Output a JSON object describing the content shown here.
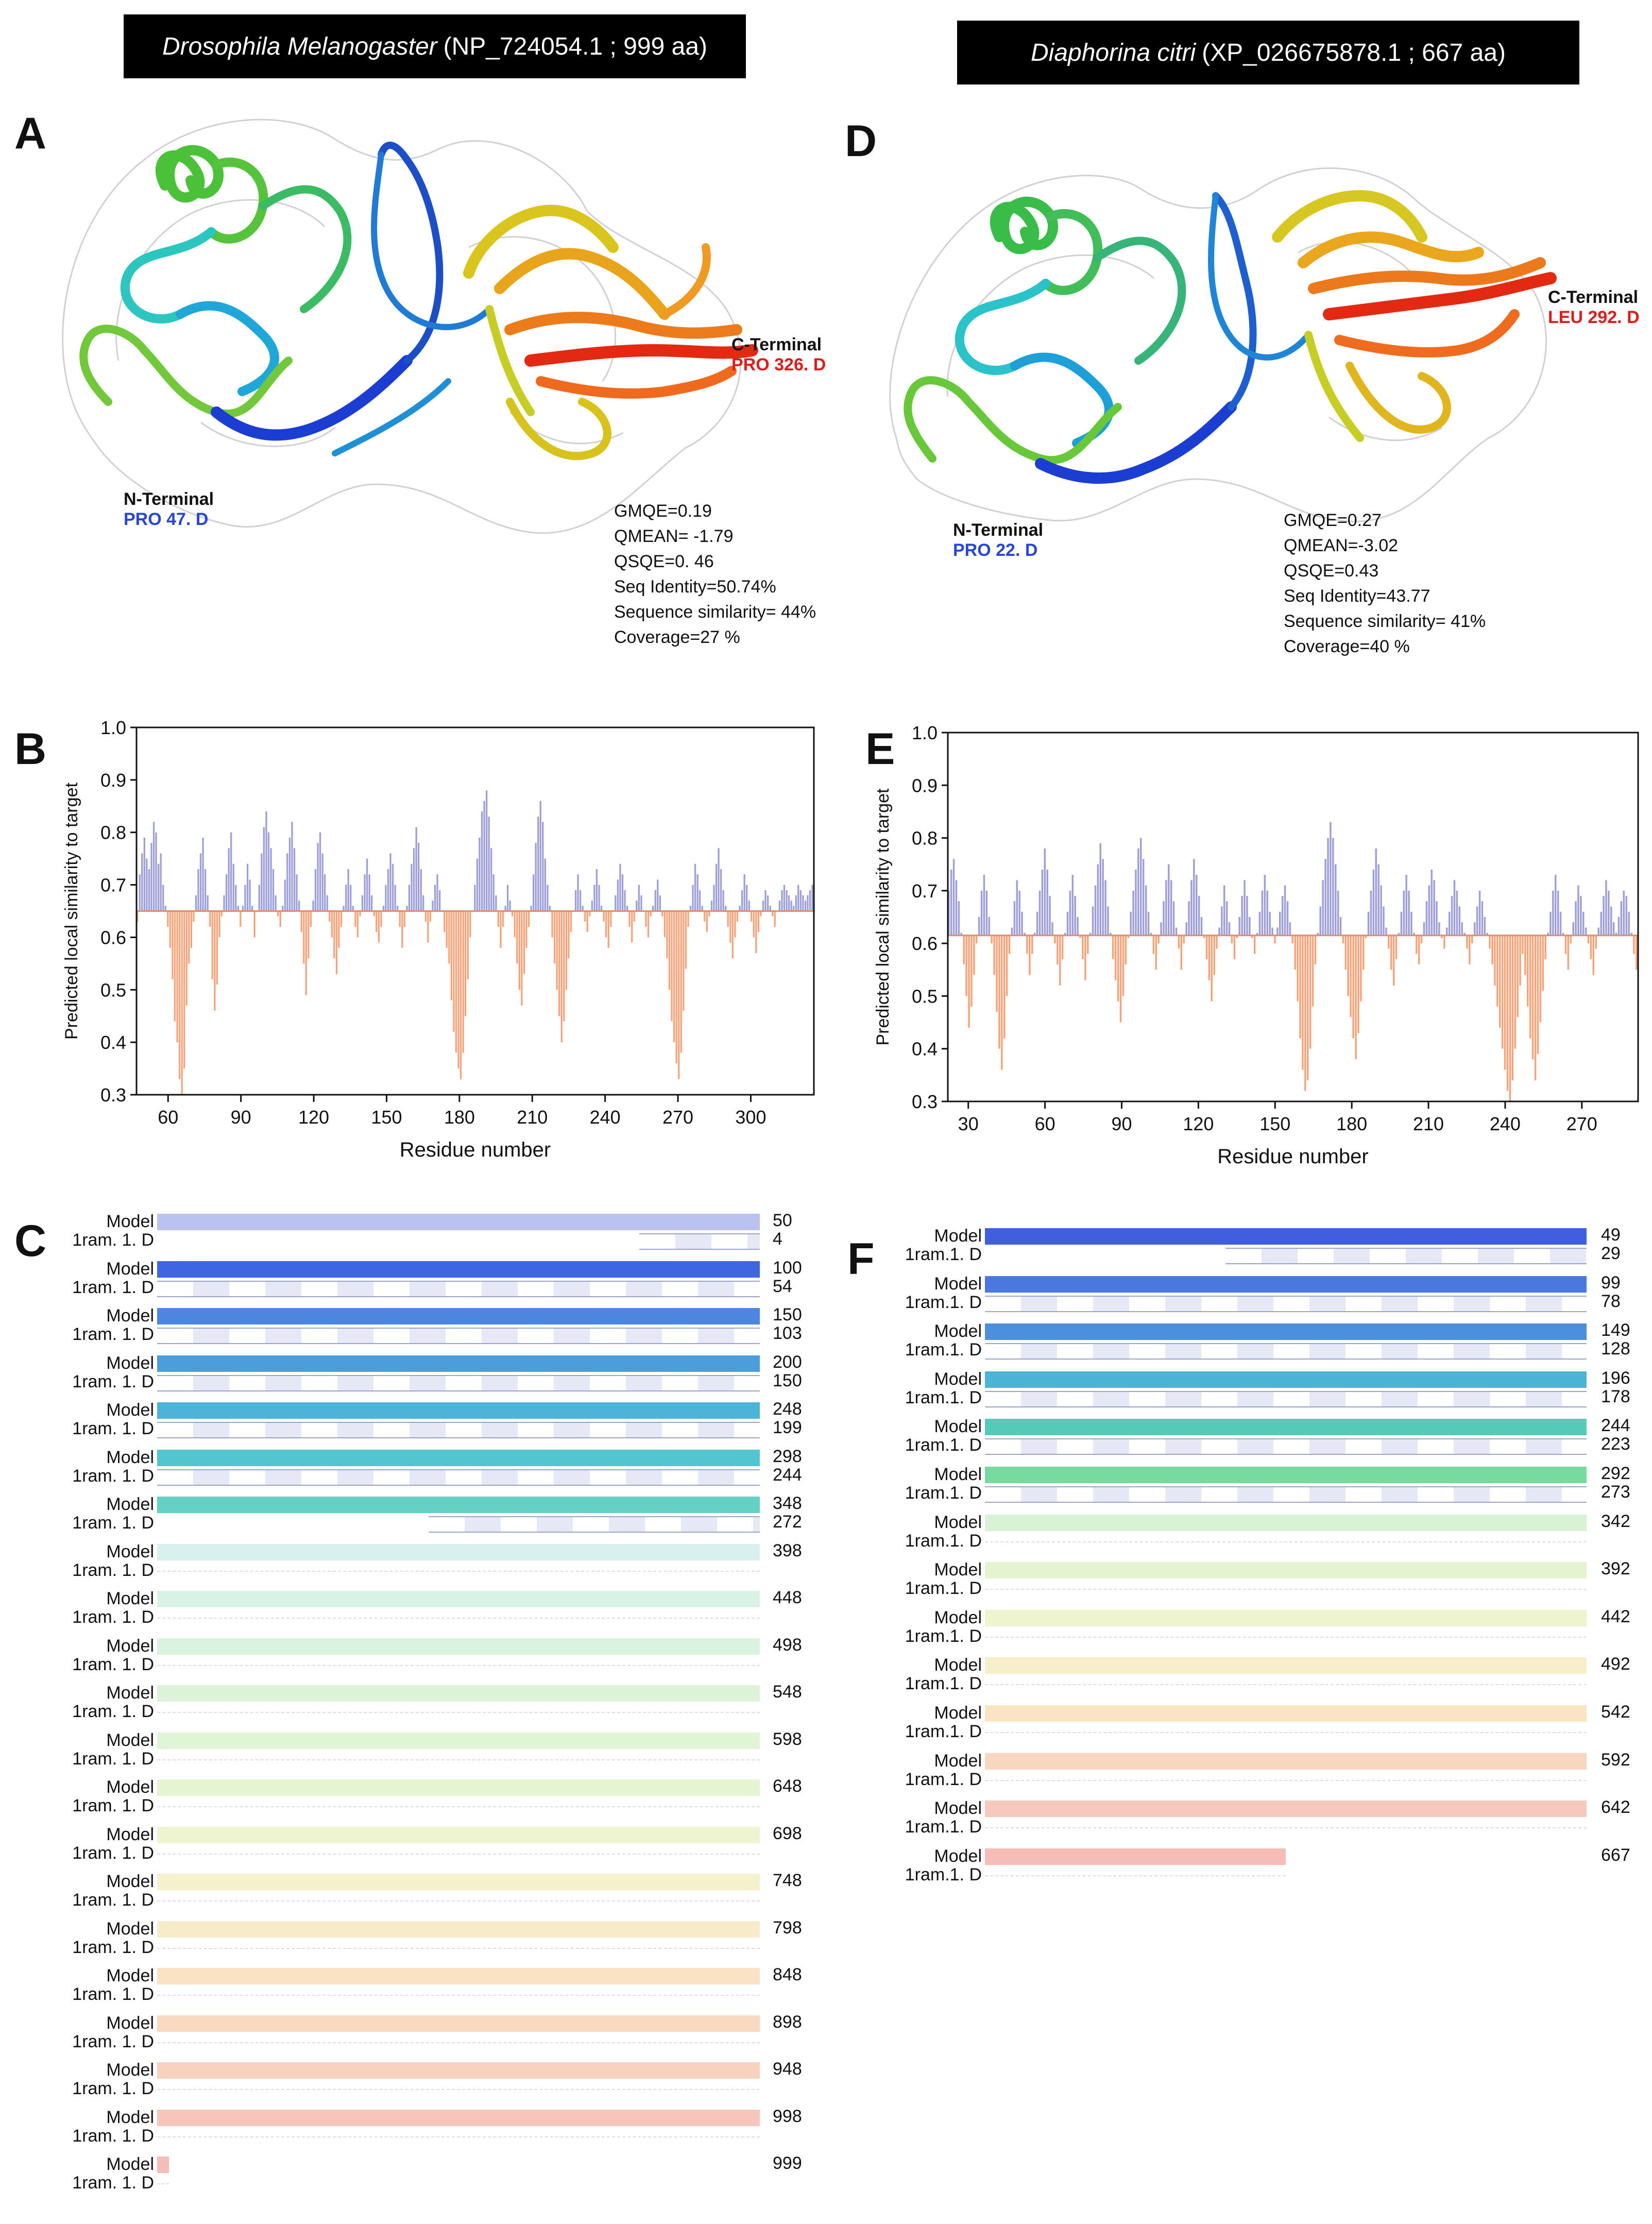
{
  "panel_left": {
    "title_species": "Drosophila Melanogaster",
    "title_accession": "(NP_724054.1 ; 999 aa)",
    "structure_letter": "A",
    "plot_letter": "B",
    "alignment_letter": "C",
    "n_terminal_label": "N-Terminal",
    "n_terminal_residue": "PRO 47. D",
    "c_terminal_label": "C-Terminal",
    "c_terminal_residue": "PRO 326. D",
    "stats": [
      "GMQE=0.19",
      "QMEAN= -1.79",
      "QSQE=0. 46",
      "Seq Identity=50.74%",
      "Sequence similarity= 44%",
      "Coverage=27 %"
    ]
  },
  "panel_right": {
    "title_species": "Diaphorina citri",
    "title_accession": "(XP_026675878.1 ; 667 aa)",
    "structure_letter": "D",
    "plot_letter": "E",
    "alignment_letter": "F",
    "n_terminal_label": "N-Terminal",
    "n_terminal_residue": "PRO 22. D",
    "c_terminal_label": "C-Terminal",
    "c_terminal_residue": "LEU 292. D",
    "stats": [
      "GMQE=0.27",
      "QMEAN=-3.02",
      "QSQE=0.43",
      "Seq Identity=43.77",
      "Sequence similarity= 41%",
      "Coverage=40 %"
    ]
  },
  "colors": {
    "above_threshold": "#9d9fd6",
    "below_threshold": "#f4a47a",
    "threshold_line": "#e8896a",
    "blue": "#2546d6",
    "red": "#e01b1b"
  },
  "chart_data": [
    {
      "type": "bar",
      "panel": "B",
      "xlabel": "Residue number",
      "ylabel": "Predicted local similarity to target",
      "xlim": [
        47,
        326
      ],
      "ylim": [
        0.3,
        1.0
      ],
      "threshold": 0.65,
      "xticks": [
        60,
        90,
        120,
        150,
        180,
        210,
        240,
        270,
        300
      ],
      "yticks": [
        "0.3",
        "0.4",
        "0.5",
        "0.6",
        "0.7",
        "0.8",
        "0.9",
        "1.0"
      ],
      "values": [
        0.63,
        0.72,
        0.76,
        0.79,
        0.75,
        0.73,
        0.78,
        0.82,
        0.8,
        0.74,
        0.76,
        0.7,
        0.66,
        0.62,
        0.58,
        0.52,
        0.44,
        0.4,
        0.33,
        0.3,
        0.35,
        0.47,
        0.55,
        0.58,
        0.63,
        0.68,
        0.73,
        0.76,
        0.79,
        0.73,
        0.68,
        0.62,
        0.52,
        0.46,
        0.51,
        0.6,
        0.64,
        0.68,
        0.72,
        0.77,
        0.8,
        0.74,
        0.7,
        0.66,
        0.62,
        0.66,
        0.7,
        0.74,
        0.71,
        0.66,
        0.6,
        0.65,
        0.7,
        0.76,
        0.81,
        0.84,
        0.8,
        0.77,
        0.73,
        0.68,
        0.64,
        0.62,
        0.66,
        0.71,
        0.76,
        0.79,
        0.82,
        0.77,
        0.72,
        0.67,
        0.61,
        0.55,
        0.49,
        0.56,
        0.62,
        0.67,
        0.73,
        0.78,
        0.8,
        0.76,
        0.72,
        0.68,
        0.63,
        0.6,
        0.56,
        0.53,
        0.58,
        0.62,
        0.66,
        0.7,
        0.73,
        0.7,
        0.66,
        0.62,
        0.6,
        0.64,
        0.68,
        0.72,
        0.75,
        0.72,
        0.68,
        0.64,
        0.61,
        0.59,
        0.62,
        0.66,
        0.7,
        0.73,
        0.76,
        0.74,
        0.7,
        0.66,
        0.62,
        0.58,
        0.62,
        0.66,
        0.7,
        0.74,
        0.77,
        0.81,
        0.78,
        0.73,
        0.68,
        0.63,
        0.59,
        0.63,
        0.67,
        0.7,
        0.72,
        0.69,
        0.65,
        0.61,
        0.58,
        0.55,
        0.48,
        0.42,
        0.38,
        0.35,
        0.33,
        0.38,
        0.45,
        0.52,
        0.6,
        0.65,
        0.7,
        0.75,
        0.79,
        0.84,
        0.86,
        0.88,
        0.83,
        0.77,
        0.72,
        0.68,
        0.62,
        0.58,
        0.62,
        0.66,
        0.7,
        0.67,
        0.64,
        0.6,
        0.55,
        0.5,
        0.47,
        0.53,
        0.58,
        0.62,
        0.66,
        0.72,
        0.78,
        0.83,
        0.86,
        0.82,
        0.75,
        0.7,
        0.66,
        0.6,
        0.55,
        0.5,
        0.45,
        0.4,
        0.44,
        0.5,
        0.56,
        0.61,
        0.65,
        0.69,
        0.72,
        0.69,
        0.66,
        0.63,
        0.61,
        0.64,
        0.67,
        0.7,
        0.73,
        0.7,
        0.66,
        0.63,
        0.6,
        0.58,
        0.62,
        0.65,
        0.68,
        0.71,
        0.74,
        0.72,
        0.69,
        0.66,
        0.62,
        0.59,
        0.63,
        0.67,
        0.7,
        0.68,
        0.65,
        0.62,
        0.6,
        0.64,
        0.66,
        0.69,
        0.71,
        0.68,
        0.64,
        0.6,
        0.56,
        0.5,
        0.44,
        0.4,
        0.36,
        0.33,
        0.38,
        0.46,
        0.54,
        0.62,
        0.66,
        0.7,
        0.74,
        0.72,
        0.69,
        0.66,
        0.63,
        0.61,
        0.64,
        0.67,
        0.7,
        0.74,
        0.77,
        0.73,
        0.69,
        0.66,
        0.62,
        0.59,
        0.56,
        0.6,
        0.63,
        0.66,
        0.69,
        0.72,
        0.7,
        0.67,
        0.63,
        0.6,
        0.57,
        0.61,
        0.64,
        0.67,
        0.69,
        0.68,
        0.66,
        0.64,
        0.62,
        0.65,
        0.67,
        0.69,
        0.7,
        0.69,
        0.68,
        0.67,
        0.66,
        0.68,
        0.7,
        0.69,
        0.68,
        0.67,
        0.68,
        0.69,
        0.7
      ]
    },
    {
      "type": "bar",
      "panel": "E",
      "xlabel": "Residue number",
      "ylabel": "Predicted local similarity to target",
      "xlim": [
        22,
        292
      ],
      "ylim": [
        0.3,
        1.0
      ],
      "threshold": 0.615,
      "xticks": [
        30,
        60,
        90,
        120,
        150,
        180,
        210,
        240,
        270
      ],
      "yticks": [
        "0.3",
        "0.4",
        "0.5",
        "0.6",
        "0.7",
        "0.8",
        "0.9",
        "1.0"
      ],
      "values": [
        0.7,
        0.74,
        0.76,
        0.72,
        0.68,
        0.62,
        0.56,
        0.5,
        0.44,
        0.48,
        0.54,
        0.6,
        0.65,
        0.7,
        0.73,
        0.7,
        0.65,
        0.6,
        0.54,
        0.47,
        0.4,
        0.36,
        0.42,
        0.5,
        0.58,
        0.63,
        0.68,
        0.72,
        0.7,
        0.66,
        0.62,
        0.58,
        0.54,
        0.58,
        0.62,
        0.66,
        0.7,
        0.74,
        0.78,
        0.74,
        0.69,
        0.64,
        0.6,
        0.56,
        0.52,
        0.57,
        0.62,
        0.66,
        0.7,
        0.73,
        0.69,
        0.65,
        0.61,
        0.57,
        0.53,
        0.58,
        0.62,
        0.67,
        0.71,
        0.75,
        0.79,
        0.76,
        0.72,
        0.67,
        0.62,
        0.57,
        0.53,
        0.49,
        0.45,
        0.5,
        0.56,
        0.61,
        0.66,
        0.7,
        0.74,
        0.78,
        0.8,
        0.76,
        0.71,
        0.66,
        0.62,
        0.58,
        0.55,
        0.6,
        0.64,
        0.68,
        0.72,
        0.75,
        0.72,
        0.68,
        0.63,
        0.59,
        0.55,
        0.6,
        0.64,
        0.68,
        0.72,
        0.76,
        0.73,
        0.69,
        0.65,
        0.61,
        0.57,
        0.53,
        0.49,
        0.54,
        0.59,
        0.63,
        0.67,
        0.71,
        0.68,
        0.64,
        0.6,
        0.57,
        0.61,
        0.65,
        0.69,
        0.72,
        0.69,
        0.65,
        0.61,
        0.58,
        0.62,
        0.66,
        0.7,
        0.73,
        0.7,
        0.66,
        0.63,
        0.6,
        0.63,
        0.66,
        0.69,
        0.71,
        0.68,
        0.64,
        0.6,
        0.55,
        0.49,
        0.42,
        0.36,
        0.32,
        0.34,
        0.4,
        0.48,
        0.56,
        0.62,
        0.67,
        0.72,
        0.76,
        0.8,
        0.83,
        0.8,
        0.75,
        0.7,
        0.65,
        0.6,
        0.55,
        0.5,
        0.46,
        0.42,
        0.38,
        0.43,
        0.49,
        0.55,
        0.61,
        0.66,
        0.7,
        0.74,
        0.78,
        0.75,
        0.71,
        0.67,
        0.63,
        0.59,
        0.55,
        0.52,
        0.57,
        0.62,
        0.66,
        0.7,
        0.73,
        0.7,
        0.66,
        0.62,
        0.58,
        0.56,
        0.6,
        0.64,
        0.68,
        0.71,
        0.74,
        0.72,
        0.68,
        0.64,
        0.61,
        0.59,
        0.63,
        0.66,
        0.69,
        0.72,
        0.7,
        0.67,
        0.64,
        0.62,
        0.59,
        0.56,
        0.6,
        0.64,
        0.67,
        0.7,
        0.68,
        0.65,
        0.62,
        0.59,
        0.56,
        0.52,
        0.48,
        0.44,
        0.4,
        0.36,
        0.32,
        0.3,
        0.34,
        0.4,
        0.46,
        0.52,
        0.58,
        0.54,
        0.48,
        0.42,
        0.38,
        0.34,
        0.39,
        0.45,
        0.51,
        0.57,
        0.62,
        0.66,
        0.7,
        0.73,
        0.7,
        0.66,
        0.62,
        0.58,
        0.55,
        0.6,
        0.64,
        0.68,
        0.71,
        0.69,
        0.66,
        0.63,
        0.6,
        0.57,
        0.54,
        0.59,
        0.63,
        0.66,
        0.69,
        0.72,
        0.7,
        0.67,
        0.64,
        0.62,
        0.65,
        0.68,
        0.7,
        0.69,
        0.66,
        0.62,
        0.58,
        0.55
      ]
    }
  ],
  "alignment_left": {
    "model_label": "Model",
    "template_label": "1ram. 1. D",
    "rows": [
      {
        "model_end": "50",
        "tmpl_end": "4",
        "color": "#b9c2f0",
        "density": 0.2
      },
      {
        "model_end": "100",
        "tmpl_end": "54",
        "color": "#3f66df",
        "density": 1
      },
      {
        "model_end": "150",
        "tmpl_end": "103",
        "color": "#4c86df",
        "density": 1
      },
      {
        "model_end": "200",
        "tmpl_end": "150",
        "color": "#4c9ddb",
        "density": 1
      },
      {
        "model_end": "248",
        "tmpl_end": "199",
        "color": "#4db3d8",
        "density": 1
      },
      {
        "model_end": "298",
        "tmpl_end": "244",
        "color": "#52c5d0",
        "density": 1
      },
      {
        "model_end": "348",
        "tmpl_end": "272",
        "color": "#64d1c4",
        "density": 0.55
      },
      {
        "model_end": "398",
        "tmpl_end": "",
        "color": "#d9f1ee",
        "density": 0
      },
      {
        "model_end": "448",
        "tmpl_end": "",
        "color": "#d8f2e5",
        "density": 0
      },
      {
        "model_end": "498",
        "tmpl_end": "",
        "color": "#d9f3df",
        "density": 0
      },
      {
        "model_end": "548",
        "tmpl_end": "",
        "color": "#ddf3d8",
        "density": 0
      },
      {
        "model_end": "598",
        "tmpl_end": "",
        "color": "#e0f4d6",
        "density": 0
      },
      {
        "model_end": "648",
        "tmpl_end": "",
        "color": "#e7f4d2",
        "density": 0
      },
      {
        "model_end": "698",
        "tmpl_end": "",
        "color": "#eef4cf",
        "density": 0
      },
      {
        "model_end": "748",
        "tmpl_end": "",
        "color": "#f4f1cc",
        "density": 0
      },
      {
        "model_end": "798",
        "tmpl_end": "",
        "color": "#f7ebc9",
        "density": 0
      },
      {
        "model_end": "848",
        "tmpl_end": "",
        "color": "#f9e3c5",
        "density": 0
      },
      {
        "model_end": "898",
        "tmpl_end": "",
        "color": "#f9dac1",
        "density": 0
      },
      {
        "model_end": "948",
        "tmpl_end": "",
        "color": "#f9d1bf",
        "density": 0
      },
      {
        "model_end": "998",
        "tmpl_end": "",
        "color": "#f7c5bc",
        "density": 0
      },
      {
        "model_end": "999",
        "tmpl_end": "",
        "color": "#f5bdb6",
        "density": 0
      }
    ]
  },
  "alignment_right": {
    "model_label": "Model",
    "template_label": "1ram.1. D",
    "rows": [
      {
        "model_end": "49",
        "tmpl_end": "29",
        "color": "#3f5fdf",
        "density": 0.6
      },
      {
        "model_end": "99",
        "tmpl_end": "78",
        "color": "#4978df",
        "density": 1
      },
      {
        "model_end": "149",
        "tmpl_end": "128",
        "color": "#4c90dc",
        "density": 1
      },
      {
        "model_end": "196",
        "tmpl_end": "178",
        "color": "#4ab3d6",
        "density": 1
      },
      {
        "model_end": "244",
        "tmpl_end": "223",
        "color": "#52cbb9",
        "density": 1
      },
      {
        "model_end": "292",
        "tmpl_end": "273",
        "color": "#76db9d",
        "density": 1
      },
      {
        "model_end": "342",
        "tmpl_end": "",
        "color": "#d9f2d4",
        "density": 0
      },
      {
        "model_end": "392",
        "tmpl_end": "",
        "color": "#e4f4d1",
        "density": 0
      },
      {
        "model_end": "442",
        "tmpl_end": "",
        "color": "#eef4ce",
        "density": 0
      },
      {
        "model_end": "492",
        "tmpl_end": "",
        "color": "#f6efc9",
        "density": 0
      },
      {
        "model_end": "542",
        "tmpl_end": "",
        "color": "#f9e4c4",
        "density": 0
      },
      {
        "model_end": "592",
        "tmpl_end": "",
        "color": "#f9d6c0",
        "density": 0
      },
      {
        "model_end": "642",
        "tmpl_end": "",
        "color": "#f7c9bd",
        "density": 0
      },
      {
        "model_end": "667",
        "tmpl_end": "",
        "color": "#f5bdb6",
        "density": 0
      }
    ]
  }
}
